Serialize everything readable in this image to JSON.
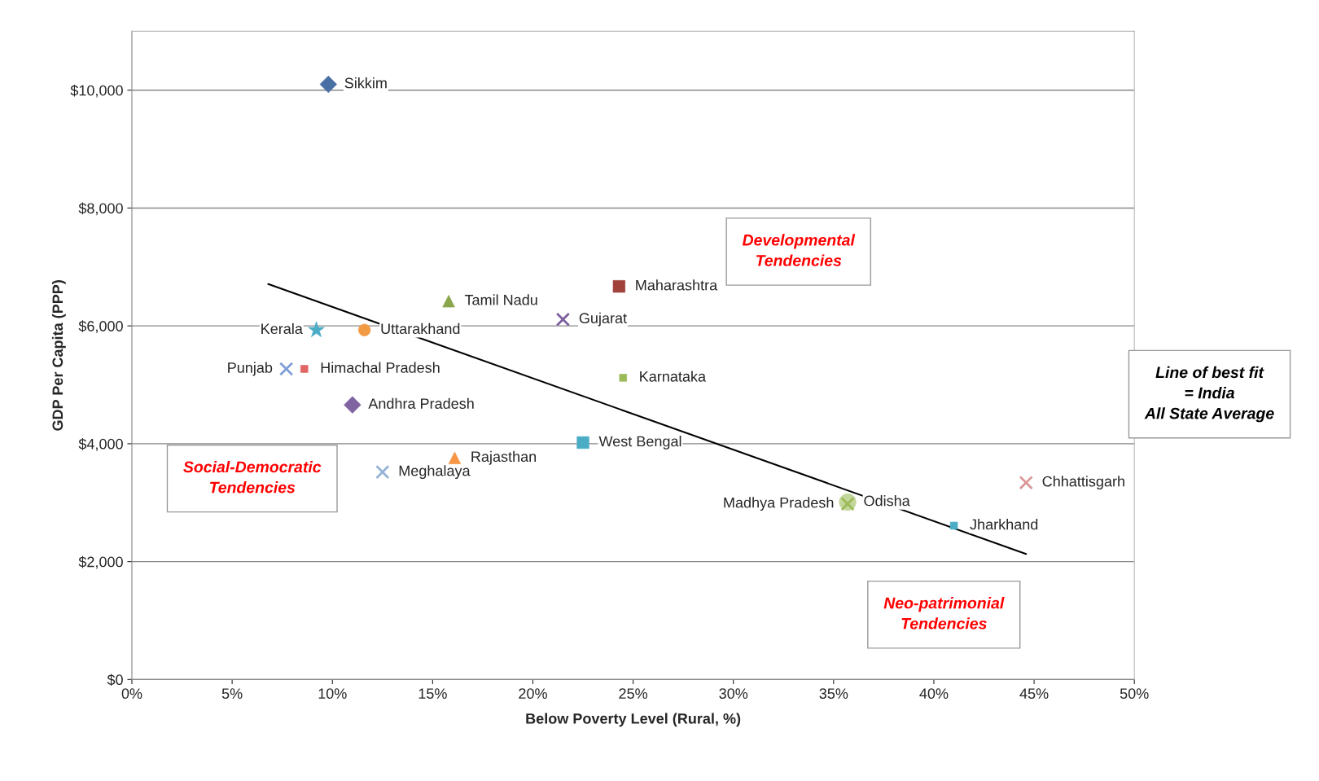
{
  "chart_data": {
    "type": "scatter",
    "xlabel": "Below Poverty Level (Rural, %)",
    "ylabel": "GDP Per Capita (PPP)",
    "xlim": [
      0,
      50
    ],
    "xticks": [
      {
        "value": 0,
        "label": "0%"
      },
      {
        "value": 5,
        "label": "5%"
      },
      {
        "value": 10,
        "label": "10%"
      },
      {
        "value": 15,
        "label": "15%"
      },
      {
        "value": 20,
        "label": "20%"
      },
      {
        "value": 25,
        "label": "25%"
      },
      {
        "value": 30,
        "label": "30%"
      },
      {
        "value": 35,
        "label": "35%"
      },
      {
        "value": 40,
        "label": "40%"
      },
      {
        "value": 45,
        "label": "45%"
      },
      {
        "value": 50,
        "label": "50%"
      }
    ],
    "ylim": [
      0,
      11000
    ],
    "yticks": [
      {
        "value": 0,
        "label": "$0"
      },
      {
        "value": 2000,
        "label": "$2,000"
      },
      {
        "value": 4000,
        "label": "$4,000"
      },
      {
        "value": 6000,
        "label": "$6,000"
      },
      {
        "value": 8000,
        "label": "$8,000"
      },
      {
        "value": 10000,
        "label": "$10,000"
      }
    ],
    "grid": "y",
    "legend": false,
    "series": [
      {
        "name": "Sikkim",
        "color": "#4a6fa5",
        "marker": "diamond",
        "x": [
          9.8
        ],
        "values": [
          10100
        ]
      },
      {
        "name": "Maharashtra",
        "color": "#a0413c",
        "marker": "square",
        "x": [
          24.3
        ],
        "values": [
          6670
        ]
      },
      {
        "name": "Tamil Nadu",
        "color": "#8aa54b",
        "marker": "triangle",
        "x": [
          15.8
        ],
        "values": [
          6420
        ]
      },
      {
        "name": "Gujarat",
        "color": "#7d5f9e",
        "marker": "cross",
        "x": [
          21.5
        ],
        "values": [
          6110
        ]
      },
      {
        "name": "Kerala",
        "color": "#4bacc6",
        "marker": "star",
        "x": [
          9.2
        ],
        "values": [
          5930
        ]
      },
      {
        "name": "Uttarakhand",
        "color": "#f39a44",
        "marker": "circle",
        "x": [
          11.6
        ],
        "values": [
          5930
        ]
      },
      {
        "name": "Punjab",
        "color": "#7f9fd8",
        "marker": "cross",
        "x": [
          7.7
        ],
        "values": [
          5270
        ]
      },
      {
        "name": "Himachal Pradesh",
        "color": "#e06666",
        "marker": "square",
        "x": [
          8.6
        ],
        "values": [
          5270
        ]
      },
      {
        "name": "Andhra Pradesh",
        "color": "#8064a2",
        "marker": "diamond",
        "x": [
          11.0
        ],
        "values": [
          4660
        ]
      },
      {
        "name": "Karnataka",
        "color": "#9bbb59",
        "marker": "square",
        "x": [
          24.5
        ],
        "values": [
          5120
        ]
      },
      {
        "name": "West Bengal",
        "color": "#4bacc6",
        "marker": "square",
        "x": [
          22.5
        ],
        "values": [
          4020
        ]
      },
      {
        "name": "Rajasthan",
        "color": "#f79646",
        "marker": "triangle",
        "x": [
          16.1
        ],
        "values": [
          3760
        ]
      },
      {
        "name": "Meghalaya",
        "color": "#95b3d7",
        "marker": "cross",
        "x": [
          12.5
        ],
        "values": [
          3520
        ]
      },
      {
        "name": "Chhattisgarh",
        "color": "#d99694",
        "marker": "cross",
        "x": [
          44.6
        ],
        "values": [
          3340
        ]
      },
      {
        "name": "Odisha",
        "color": "#c3d69b",
        "marker": "circle",
        "x": [
          35.7
        ],
        "values": [
          3010
        ]
      },
      {
        "name": "Madhya Pradesh",
        "color": "#9bbb59",
        "marker": "cross",
        "x": [
          35.7
        ],
        "values": [
          2980
        ]
      },
      {
        "name": "Jharkhand",
        "color": "#4bacc6",
        "marker": "square",
        "x": [
          41.0
        ],
        "values": [
          2610
        ]
      },
      {
        "type": "line",
        "color": "#000000",
        "marker": "none",
        "x": [
          6.8,
          44.6
        ],
        "values": [
          6710,
          2130
        ]
      }
    ],
    "annotations": [
      "Developmental Tendencies",
      "Social-Democratic Tendencies",
      "Neo-patrimonial Tendencies",
      "Line of best fit = India All State Average"
    ]
  }
}
